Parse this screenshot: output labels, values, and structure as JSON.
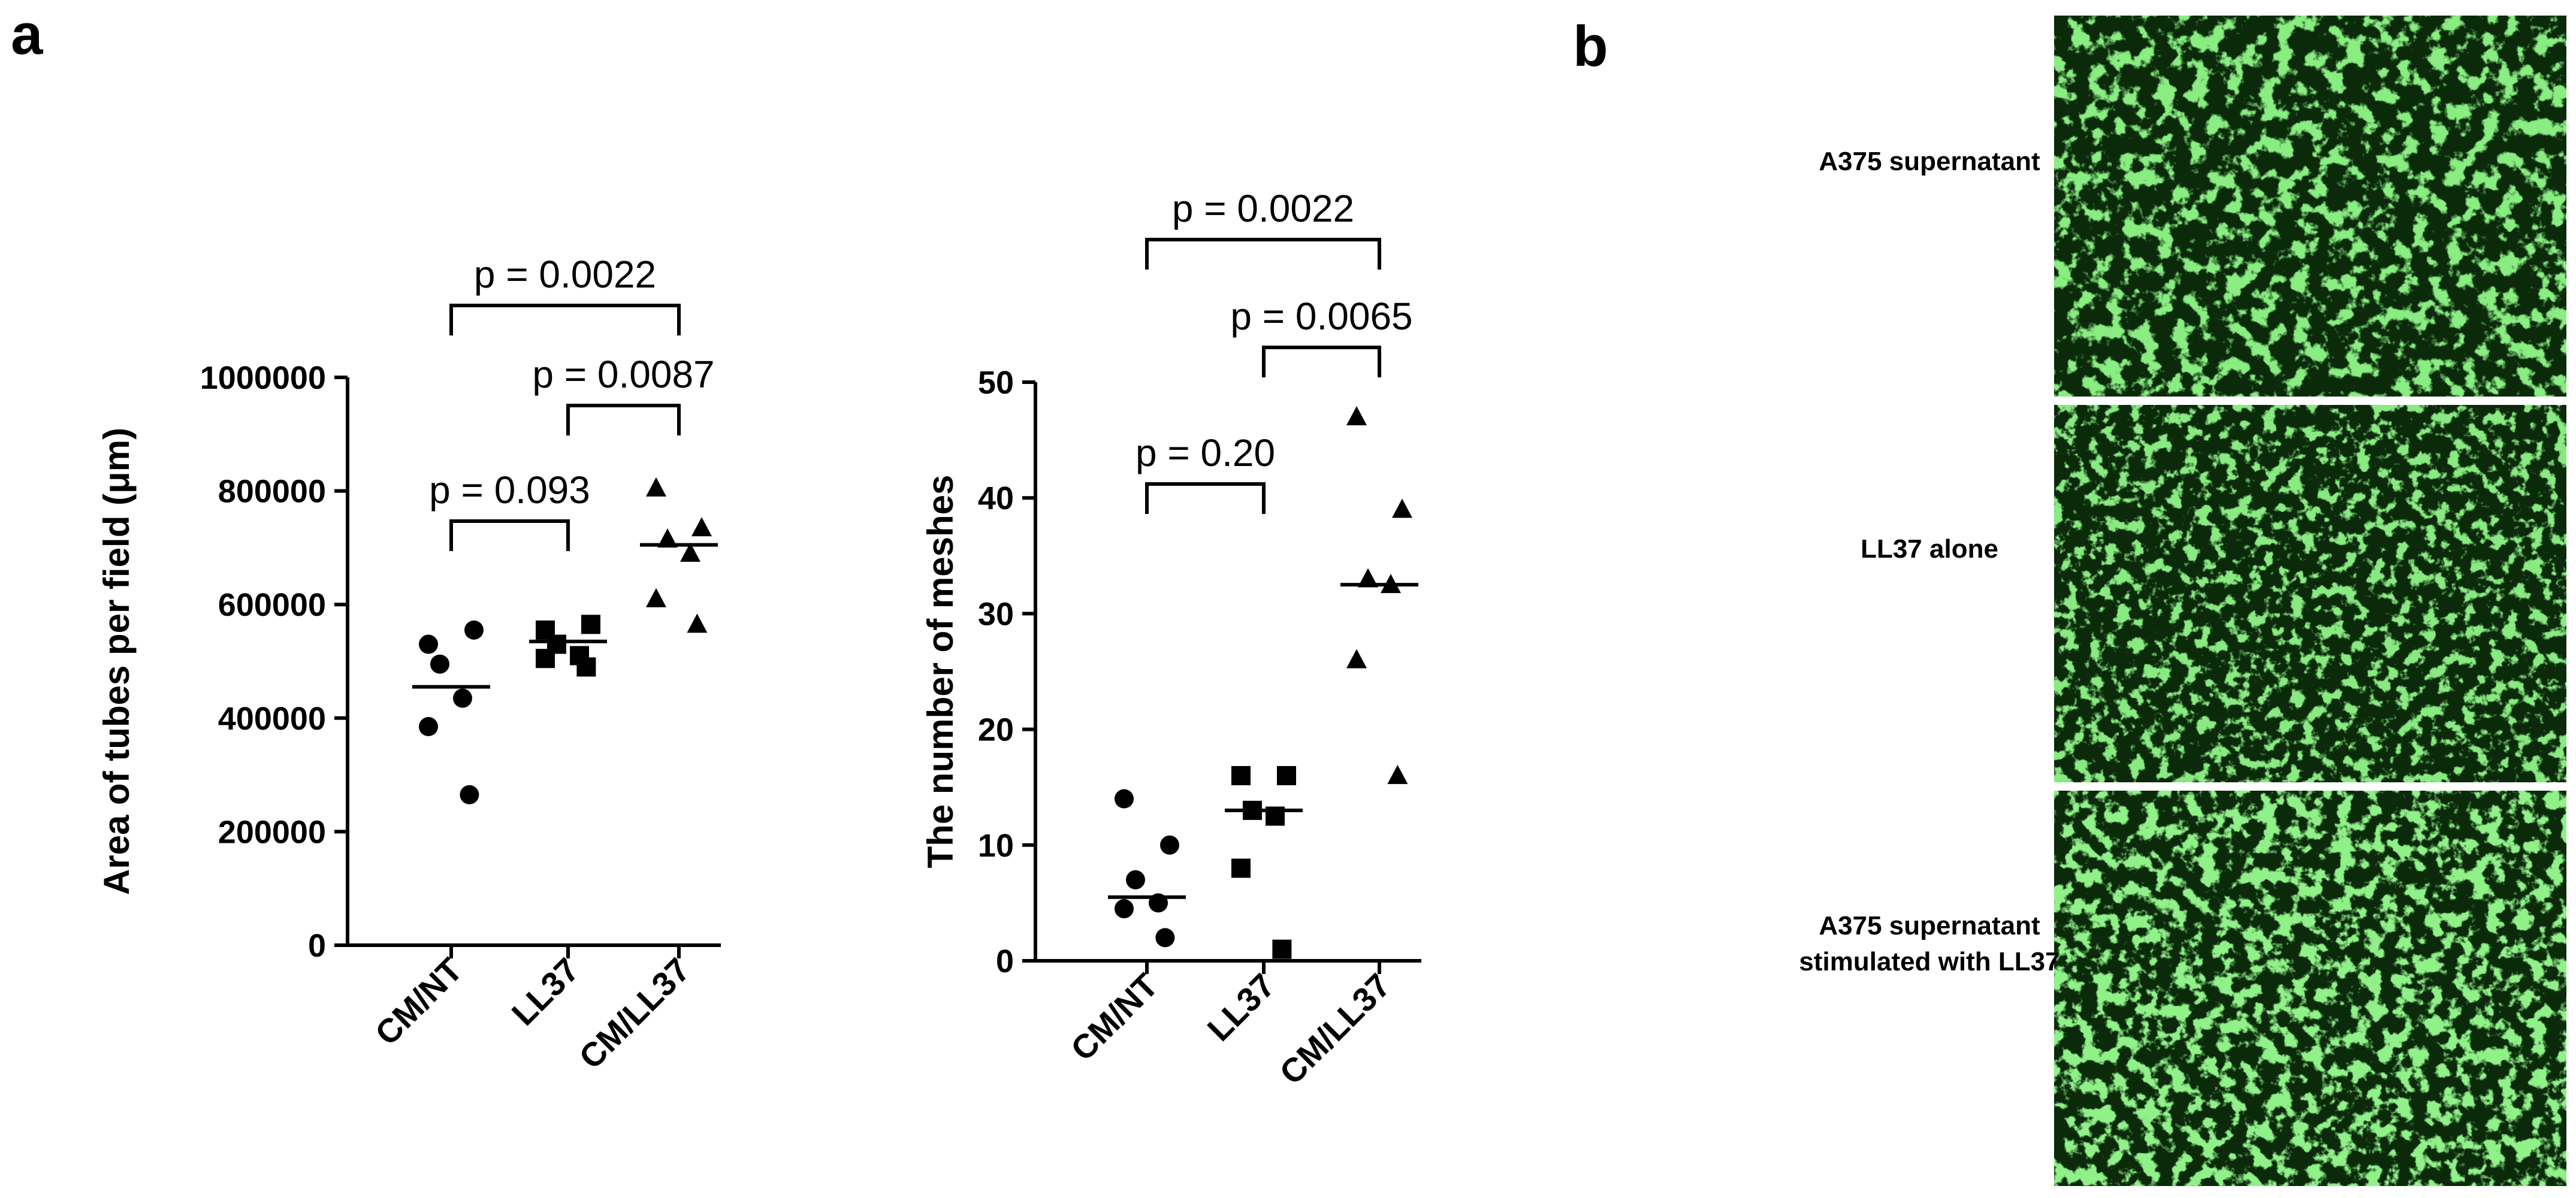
{
  "panel_letters": {
    "a": "a",
    "b": "b"
  },
  "chart_data": [
    {
      "type": "scatter",
      "xlabel": "",
      "ylabel": "Area of tubes per field (μm)",
      "ylim": [
        0,
        1000000
      ],
      "yticks": [
        "0",
        "200000",
        "400000",
        "600000",
        "800000",
        "1000000"
      ],
      "categories": [
        "CM/NT",
        "LL37",
        "CM/LL37"
      ],
      "markers": [
        "circle",
        "square",
        "triangle"
      ],
      "points": [
        [
          530000,
          555000,
          495000,
          435000,
          385000,
          265000
        ],
        [
          555000,
          565000,
          530000,
          510000,
          505000,
          490000
        ],
        [
          805000,
          735000,
          715000,
          690000,
          610000,
          565000
        ]
      ],
      "means": [
        455000,
        535000,
        705000
      ],
      "comparisons": [
        {
          "from": 0,
          "to": 1,
          "label": "p = 0.093"
        },
        {
          "from": 1,
          "to": 2,
          "label": "p = 0.0087"
        },
        {
          "from": 0,
          "to": 2,
          "label": "p = 0.0022"
        }
      ]
    },
    {
      "type": "scatter",
      "xlabel": "",
      "ylabel": "The number of meshes",
      "ylim": [
        0,
        50
      ],
      "yticks": [
        "0",
        "10",
        "20",
        "30",
        "40",
        "50"
      ],
      "categories": [
        "CM/NT",
        "LL37",
        "CM/LL37"
      ],
      "markers": [
        "circle",
        "square",
        "triangle"
      ],
      "points": [
        [
          14,
          10,
          7,
          5,
          4.5,
          2
        ],
        [
          16,
          16,
          13,
          12.5,
          8,
          1
        ],
        [
          47,
          39,
          33,
          32.5,
          26,
          16
        ]
      ],
      "means": [
        5.5,
        13,
        32.5
      ],
      "comparisons": [
        {
          "from": 0,
          "to": 1,
          "label": "p = 0.20"
        },
        {
          "from": 1,
          "to": 2,
          "label": "p = 0.0065"
        },
        {
          "from": 0,
          "to": 2,
          "label": "p = 0.0022"
        }
      ]
    }
  ],
  "images": [
    {
      "label_lines": [
        "A375 supernatant"
      ]
    },
    {
      "label_lines": [
        "LL37 alone"
      ]
    },
    {
      "label_lines": [
        "A375 supernatant",
        "stimulated with LL37"
      ]
    }
  ],
  "colors": {
    "axis": "#000000",
    "image_background": "#0a2a0a",
    "image_cells": "#39d23a",
    "image_bright": "#5cf05a"
  }
}
